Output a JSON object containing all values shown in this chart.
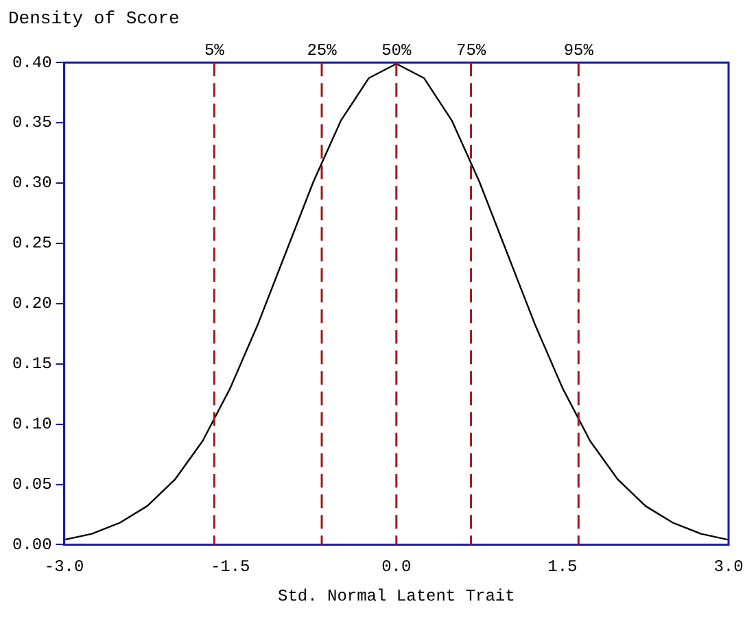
{
  "chart_data": {
    "type": "line",
    "title": "Density of Score",
    "xlabel": "Std. Normal Latent Trait",
    "x": [
      -3,
      -2.75,
      -2.5,
      -2.25,
      -2,
      -1.75,
      -1.5,
      -1.25,
      -1,
      -0.75,
      -0.5,
      -0.25,
      0,
      0.25,
      0.5,
      0.75,
      1,
      1.25,
      1.5,
      1.75,
      2,
      2.25,
      2.5,
      2.75,
      3
    ],
    "series": [
      {
        "color": "#000000",
        "values": [
          0.004,
          0.009,
          0.018,
          0.032,
          0.054,
          0.086,
          0.13,
          0.183,
          0.242,
          0.301,
          0.352,
          0.387,
          0.399,
          0.387,
          0.352,
          0.301,
          0.242,
          0.183,
          0.13,
          0.086,
          0.054,
          0.032,
          0.018,
          0.009,
          0.004
        ]
      }
    ],
    "xlim": [
      -3,
      3
    ],
    "xticks": [
      {
        "value": -3,
        "label": "-3.0"
      },
      {
        "value": -1.5,
        "label": "-1.5"
      },
      {
        "value": 0,
        "label": "0.0"
      },
      {
        "value": 1.5,
        "label": "1.5"
      },
      {
        "value": 3,
        "label": "3.0"
      }
    ],
    "ylim": [
      0,
      0.4
    ],
    "yticks": [
      {
        "value": 0,
        "label": "0.00"
      },
      {
        "value": 0.05,
        "label": "0.05"
      },
      {
        "value": 0.1,
        "label": "0.10"
      },
      {
        "value": 0.15,
        "label": "0.15"
      },
      {
        "value": 0.2,
        "label": "0.20"
      },
      {
        "value": 0.25,
        "label": "0.25"
      },
      {
        "value": 0.3,
        "label": "0.30"
      },
      {
        "value": 0.35,
        "label": "0.35"
      },
      {
        "value": 0.4,
        "label": "0.40"
      }
    ],
    "ref_lines": [
      {
        "axis": "x",
        "value": -1.645,
        "color": "#a01818",
        "line_style": "dashed"
      },
      {
        "axis": "x",
        "value": -0.674,
        "color": "#a01818",
        "line_style": "dashed"
      },
      {
        "axis": "x",
        "value": 0,
        "color": "#a01818",
        "line_style": "dashed"
      },
      {
        "axis": "x",
        "value": 0.674,
        "color": "#a01818",
        "line_style": "dashed"
      },
      {
        "axis": "x",
        "value": 1.645,
        "color": "#a01818",
        "line_style": "dashed"
      }
    ],
    "annotations": [
      {
        "text": "5%",
        "x": -1.645,
        "y": 0.4
      },
      {
        "text": "25%",
        "x": -0.674,
        "y": 0.4
      },
      {
        "text": "50%",
        "x": 0,
        "y": 0.4
      },
      {
        "text": "75%",
        "x": 0.674,
        "y": 0.4
      },
      {
        "text": "95%",
        "x": 1.645,
        "y": 0.4
      }
    ],
    "grid": false,
    "legend": false,
    "marker": "none",
    "line_style": "solid"
  }
}
